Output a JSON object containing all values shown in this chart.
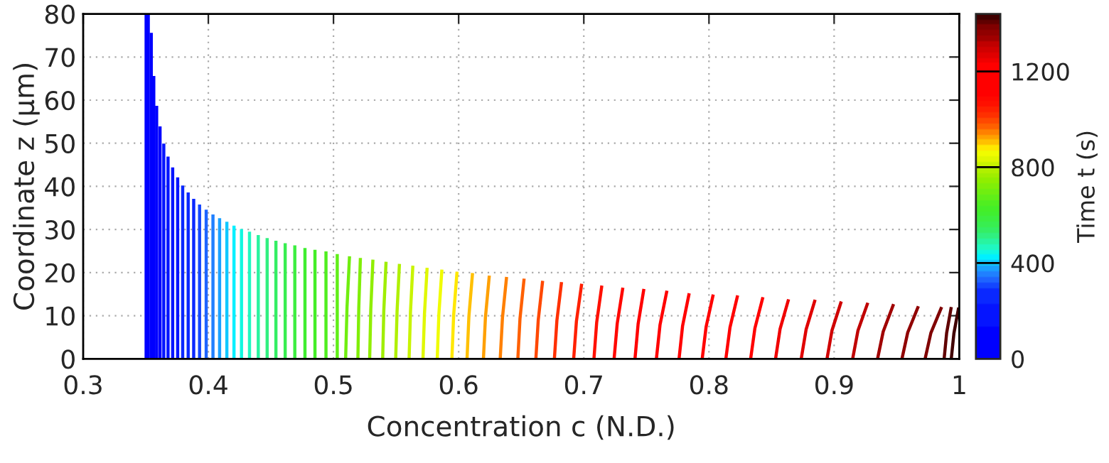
{
  "chart_data": {
    "type": "line",
    "xlabel": "Concentration c (N.D.)",
    "ylabel": "Coordinate z (μm)",
    "clabel": "Time t (s)",
    "xlim": [
      0.3,
      1.0
    ],
    "xticks": [
      0.3,
      0.4,
      0.5,
      0.6,
      0.7,
      0.8,
      0.9,
      {
        "value": 1.0,
        "label": "1"
      }
    ],
    "ylim": [
      0,
      80
    ],
    "yticks": [
      0,
      10,
      20,
      30,
      40,
      50,
      60,
      70,
      80
    ],
    "clim": [
      0,
      1440
    ],
    "cticks": [
      0,
      400,
      800,
      1200
    ],
    "grid": true,
    "line_style": "solid",
    "series": [
      {
        "color": "#0000ff",
        "x": [
          0.3503,
          0.3503
        ],
        "values": [
          0,
          80
        ]
      },
      {
        "color": "#0000ff",
        "x": [
          0.352,
          0.352
        ],
        "values": [
          0,
          80
        ]
      },
      {
        "color": "#0000ff",
        "x": [
          0.3544,
          0.3544
        ],
        "values": [
          0,
          75.6
        ]
      },
      {
        "color": "#0000ff",
        "x": [
          0.3564,
          0.3564
        ],
        "values": [
          0,
          65.6
        ]
      },
      {
        "color": "#0000ff",
        "x": [
          0.3587,
          0.3587
        ],
        "values": [
          0,
          58.7
        ]
      },
      {
        "color": "#0000ff",
        "x": [
          0.3614,
          0.3614
        ],
        "values": [
          0,
          53.9
        ]
      },
      {
        "color": "#0514ff",
        "x": [
          0.3644,
          0.3644
        ],
        "values": [
          0,
          49.9
        ]
      },
      {
        "color": "#0514ff",
        "x": [
          0.3678,
          0.3678
        ],
        "values": [
          0,
          46.9
        ]
      },
      {
        "color": "#0514ff",
        "x": [
          0.3715,
          0.3715
        ],
        "values": [
          0,
          44.4
        ]
      },
      {
        "color": "#0514ff",
        "x": [
          0.3755,
          0.3755
        ],
        "values": [
          0,
          42.1
        ]
      },
      {
        "color": "#0a28ff",
        "x": [
          0.3795,
          0.3795
        ],
        "values": [
          0,
          40.2
        ]
      },
      {
        "color": "#0a28ff",
        "x": [
          0.3839,
          0.3839
        ],
        "values": [
          0,
          38.6
        ]
      },
      {
        "color": "#0a28ff",
        "x": [
          0.3883,
          0.3883
        ],
        "values": [
          0,
          37.1
        ]
      },
      {
        "color": "#1446ff",
        "x": [
          0.393,
          0.393
        ],
        "values": [
          0,
          35.8
        ]
      },
      {
        "color": "#1e64ff",
        "x": [
          0.3983,
          0.3983
        ],
        "values": [
          0,
          34.6
        ]
      },
      {
        "color": "#2080ff",
        "x": [
          0.4037,
          0.4037
        ],
        "values": [
          0,
          33.5
        ]
      },
      {
        "color": "#1aa0ff",
        "x": [
          0.409,
          0.409
        ],
        "values": [
          0,
          32.6
        ]
      },
      {
        "color": "#10c8ff",
        "x": [
          0.4148,
          0.4148
        ],
        "values": [
          0,
          31.8
        ]
      },
      {
        "color": "#00f0ff",
        "x": [
          0.4205,
          0.4205
        ],
        "values": [
          0,
          30.9
        ]
      },
      {
        "color": "#10f8e0",
        "x": [
          0.4265,
          0.4265
        ],
        "values": [
          0,
          30.1
        ]
      },
      {
        "color": "#20f8c0",
        "x": [
          0.4329,
          0.4329
        ],
        "values": [
          0,
          29.5
        ]
      },
      {
        "color": "#28f4a0",
        "x": [
          0.4399,
          0.4399
        ],
        "values": [
          0,
          28.7
        ]
      },
      {
        "color": "#30f080",
        "x": [
          0.447,
          0.447
        ],
        "values": [
          0,
          28.0
        ]
      },
      {
        "color": "#34ee64",
        "x": [
          0.454,
          0.454
        ],
        "values": [
          0,
          27.4
        ]
      },
      {
        "color": "#38ee50",
        "x": [
          0.4614,
          0.4614
        ],
        "values": [
          0,
          26.8
        ]
      },
      {
        "color": "#3cee40",
        "x": [
          0.4691,
          0.4691
        ],
        "values": [
          0,
          26.3
        ]
      },
      {
        "color": "#40ee30",
        "x": [
          0.4772,
          0.4772
        ],
        "values": [
          0,
          25.7
        ]
      },
      {
        "color": "#44ee28",
        "x": [
          0.4852,
          0.4852
        ],
        "values": [
          0,
          25.3
        ]
      },
      {
        "color": "#50ee20",
        "x": [
          0.494,
          0.494
        ],
        "values": [
          0,
          24.9
        ]
      },
      {
        "color": "#60ee18",
        "x": [
          0.503,
          0.503
        ],
        "values": [
          0,
          24.3
        ]
      },
      {
        "color": "#70ee10",
        "x": [
          0.5097,
          0.5108,
          0.5128
        ],
        "values": [
          0,
          11.9,
          23.8
        ]
      },
      {
        "color": "#80ee08",
        "x": [
          0.5195,
          0.5202,
          0.5215
        ],
        "values": [
          0,
          11.7,
          23.4
        ]
      },
      {
        "color": "#90ee00",
        "x": [
          0.5289,
          0.5298,
          0.5315
        ],
        "values": [
          0,
          11.5,
          23.0
        ]
      },
      {
        "color": "#a0ee00",
        "x": [
          0.5393,
          0.5402,
          0.542
        ],
        "values": [
          0,
          11.2,
          22.5
        ]
      },
      {
        "color": "#b0f000",
        "x": [
          0.5497,
          0.5508,
          0.5527
        ],
        "values": [
          0,
          11.0,
          22.0
        ]
      },
      {
        "color": "#c8f400",
        "x": [
          0.5604,
          0.5615,
          0.5634
        ],
        "values": [
          0,
          10.8,
          21.6
        ]
      },
      {
        "color": "#e0f800",
        "x": [
          0.5715,
          0.5727,
          0.5748
        ],
        "values": [
          0,
          10.5,
          21.1
        ]
      },
      {
        "color": "#f0fc00",
        "x": [
          0.5829,
          0.5842,
          0.5866
        ],
        "values": [
          0,
          10.3,
          20.7
        ]
      },
      {
        "color": "#ffe800",
        "x": [
          0.5946,
          0.596,
          0.5987
        ],
        "values": [
          0,
          10.1,
          20.2
        ]
      },
      {
        "color": "#ffc000",
        "x": [
          0.6067,
          0.6082,
          0.6111
        ],
        "values": [
          0,
          9.9,
          19.9
        ]
      },
      {
        "color": "#ffa000",
        "x": [
          0.6198,
          0.6214,
          0.6245
        ],
        "values": [
          0,
          9.6,
          19.3
        ]
      },
      {
        "color": "#ff8000",
        "x": [
          0.6332,
          0.635,
          0.6383
        ],
        "values": [
          0,
          9.5,
          19.0
        ]
      },
      {
        "color": "#ff6000",
        "x": [
          0.6473,
          0.649,
          0.6523
        ],
        "values": [
          0,
          9.3,
          18.6
        ]
      },
      {
        "color": "#ff4800",
        "x": [
          0.6617,
          0.6636,
          0.6671
        ],
        "values": [
          0,
          9.0,
          18.1
        ]
      },
      {
        "color": "#ff3000",
        "x": [
          0.6765,
          0.6785,
          0.6822
        ],
        "values": [
          0,
          8.9,
          17.8
        ]
      },
      {
        "color": "#ff2000",
        "x": [
          0.6919,
          0.6941,
          0.6983
        ],
        "values": [
          0,
          8.7,
          17.4
        ]
      },
      {
        "color": "#ff1000",
        "x": [
          0.7081,
          0.7103,
          0.7144
        ],
        "values": [
          0,
          8.5,
          17.0
        ]
      },
      {
        "color": "#ff0800",
        "x": [
          0.7242,
          0.7267,
          0.7312
        ],
        "values": [
          0,
          8.2,
          16.5
        ]
      },
      {
        "color": "#ff0000",
        "x": [
          0.7409,
          0.7434,
          0.748
        ],
        "values": [
          0,
          8.1,
          16.2
        ]
      },
      {
        "color": "#ff0000",
        "x": [
          0.758,
          0.7609,
          0.7664
        ],
        "values": [
          0,
          7.9,
          15.8
        ]
      },
      {
        "color": "#ff0000",
        "x": [
          0.7761,
          0.7789,
          0.7842
        ],
        "values": [
          0,
          7.6,
          15.2
        ]
      },
      {
        "color": "#ff0000",
        "x": [
          0.7946,
          0.7977,
          0.8034
        ],
        "values": [
          0,
          7.4,
          14.9
        ]
      },
      {
        "color": "#ff0000",
        "x": [
          0.8135,
          0.8168,
          0.8229
        ],
        "values": [
          0,
          7.3,
          14.7
        ]
      },
      {
        "color": "#ff0000",
        "x": [
          0.8333,
          0.8367,
          0.8431
        ],
        "values": [
          0,
          7.1,
          14.3
        ]
      },
      {
        "color": "#f00000",
        "x": [
          0.8532,
          0.8568,
          0.8636
        ],
        "values": [
          0,
          6.9,
          13.8
        ]
      },
      {
        "color": "#e00000",
        "x": [
          0.8737,
          0.8776,
          0.8848
        ],
        "values": [
          0,
          6.8,
          13.7
        ]
      },
      {
        "color": "#d00000",
        "x": [
          0.8943,
          0.8983,
          0.9057
        ],
        "values": [
          0,
          6.6,
          13.3
        ]
      },
      {
        "color": "#c00000",
        "x": [
          0.9148,
          0.919,
          0.9269
        ],
        "values": [
          0,
          6.5,
          13.0
        ]
      },
      {
        "color": "#a00000",
        "x": [
          0.9347,
          0.9392,
          0.9475
        ],
        "values": [
          0,
          6.3,
          12.7
        ]
      },
      {
        "color": "#900000",
        "x": [
          0.9542,
          0.9588,
          0.9673
        ],
        "values": [
          0,
          6.1,
          12.2
        ]
      },
      {
        "color": "#800000",
        "x": [
          0.9727,
          0.9773,
          0.9859
        ],
        "values": [
          0,
          6.0,
          12.0
        ]
      },
      {
        "color": "#600000",
        "x": [
          0.9879,
          0.9899,
          0.9936
        ],
        "values": [
          0,
          6.0,
          12.0
        ]
      },
      {
        "color": "#400000",
        "x": [
          0.9936,
          0.9957,
          0.9995
        ],
        "values": [
          0,
          5.9,
          11.9
        ]
      }
    ]
  }
}
